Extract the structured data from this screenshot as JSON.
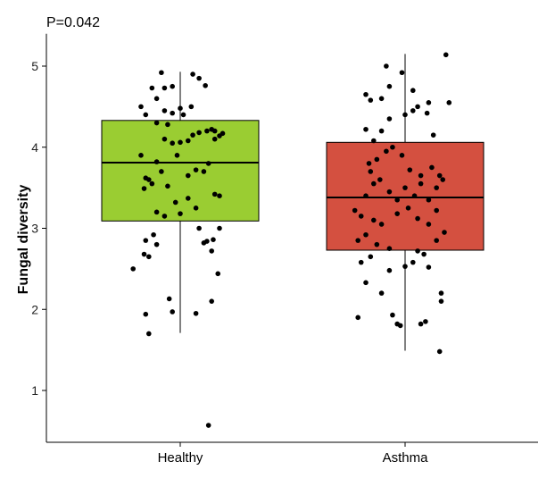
{
  "chart_data": {
    "type": "box",
    "annotation": "P=0.042",
    "xlabel": "",
    "ylabel": "Fungal diversity",
    "categories": [
      "Healthy",
      "Asthma"
    ],
    "yticks": [
      1,
      2,
      3,
      4,
      5
    ],
    "ylim": [
      0.4,
      5.4
    ],
    "grid": false,
    "legend": "none",
    "colors": {
      "Healthy": "#9acd32",
      "Asthma": "#d45040"
    },
    "boxes": [
      {
        "category": "Healthy",
        "q1": 3.09,
        "median": 3.81,
        "q3": 4.33,
        "whisker_low": 1.71,
        "whisker_high": 4.93
      },
      {
        "category": "Asthma",
        "q1": 2.73,
        "median": 3.38,
        "q3": 4.06,
        "whisker_low": 1.49,
        "whisker_high": 5.15
      }
    ],
    "points": {
      "Healthy": [
        {
          "x": -0.3,
          "y": 2.5
        },
        {
          "x": -0.23,
          "y": 2.68
        },
        {
          "x": -0.2,
          "y": 2.65
        },
        {
          "x": -0.15,
          "y": 2.8
        },
        {
          "x": -0.17,
          "y": 2.92
        },
        {
          "x": -0.22,
          "y": 2.85
        },
        {
          "x": -0.05,
          "y": 1.97
        },
        {
          "x": 0.1,
          "y": 1.95
        },
        {
          "x": -0.2,
          "y": 1.7
        },
        {
          "x": -0.07,
          "y": 2.13
        },
        {
          "x": -0.22,
          "y": 1.94
        },
        {
          "x": 0.2,
          "y": 2.1
        },
        {
          "x": 0.24,
          "y": 2.44
        },
        {
          "x": 0.2,
          "y": 2.72
        },
        {
          "x": 0.21,
          "y": 2.86
        },
        {
          "x": 0.15,
          "y": 2.82
        },
        {
          "x": 0.25,
          "y": 3.0
        },
        {
          "x": 0.12,
          "y": 3.0
        },
        {
          "x": 0.17,
          "y": 2.84
        },
        {
          "x": 0.18,
          "y": 0.57
        },
        {
          "x": -0.23,
          "y": 3.49
        },
        {
          "x": -0.18,
          "y": 3.55
        },
        {
          "x": -0.15,
          "y": 3.2
        },
        {
          "x": -0.1,
          "y": 3.15
        },
        {
          "x": -0.03,
          "y": 3.32
        },
        {
          "x": 0.0,
          "y": 3.18
        },
        {
          "x": 0.05,
          "y": 3.37
        },
        {
          "x": 0.1,
          "y": 3.25
        },
        {
          "x": 0.22,
          "y": 3.42
        },
        {
          "x": 0.25,
          "y": 3.4
        },
        {
          "x": -0.2,
          "y": 3.6
        },
        {
          "x": -0.08,
          "y": 3.52
        },
        {
          "x": 0.05,
          "y": 3.65
        },
        {
          "x": 0.1,
          "y": 3.72
        },
        {
          "x": -0.15,
          "y": 3.82
        },
        {
          "x": -0.12,
          "y": 3.7
        },
        {
          "x": -0.22,
          "y": 3.62
        },
        {
          "x": 0.15,
          "y": 3.7
        },
        {
          "x": 0.18,
          "y": 3.8
        },
        {
          "x": -0.25,
          "y": 3.9
        },
        {
          "x": -0.1,
          "y": 4.1
        },
        {
          "x": -0.05,
          "y": 4.05
        },
        {
          "x": 0.0,
          "y": 4.06
        },
        {
          "x": 0.05,
          "y": 4.08
        },
        {
          "x": 0.08,
          "y": 4.15
        },
        {
          "x": 0.12,
          "y": 4.18
        },
        {
          "x": 0.17,
          "y": 4.2
        },
        {
          "x": 0.2,
          "y": 4.22
        },
        {
          "x": 0.22,
          "y": 4.1
        },
        {
          "x": 0.25,
          "y": 4.14
        },
        {
          "x": 0.27,
          "y": 4.17
        },
        {
          "x": -0.15,
          "y": 4.3
        },
        {
          "x": -0.08,
          "y": 4.28
        },
        {
          "x": -0.22,
          "y": 4.4
        },
        {
          "x": -0.1,
          "y": 4.45
        },
        {
          "x": 0.0,
          "y": 4.48
        },
        {
          "x": 0.07,
          "y": 4.5
        },
        {
          "x": -0.05,
          "y": 4.42
        },
        {
          "x": -0.15,
          "y": 4.6
        },
        {
          "x": -0.18,
          "y": 4.73
        },
        {
          "x": -0.1,
          "y": 4.73
        },
        {
          "x": -0.05,
          "y": 4.75
        },
        {
          "x": 0.08,
          "y": 4.9
        },
        {
          "x": 0.12,
          "y": 4.85
        },
        {
          "x": 0.16,
          "y": 4.76
        },
        {
          "x": -0.12,
          "y": 4.92
        },
        {
          "x": -0.25,
          "y": 4.5
        },
        {
          "x": 0.02,
          "y": 4.4
        },
        {
          "x": 0.22,
          "y": 4.2
        },
        {
          "x": -0.02,
          "y": 3.9
        }
      ],
      "Asthma": [
        {
          "x": -0.3,
          "y": 1.9
        },
        {
          "x": -0.05,
          "y": 1.82
        },
        {
          "x": -0.03,
          "y": 1.8
        },
        {
          "x": 0.1,
          "y": 1.82
        },
        {
          "x": 0.13,
          "y": 1.85
        },
        {
          "x": 0.22,
          "y": 1.48
        },
        {
          "x": -0.08,
          "y": 1.93
        },
        {
          "x": -0.15,
          "y": 2.2
        },
        {
          "x": -0.25,
          "y": 2.33
        },
        {
          "x": 0.23,
          "y": 2.1
        },
        {
          "x": 0.23,
          "y": 2.2
        },
        {
          "x": -0.1,
          "y": 2.48
        },
        {
          "x": 0.0,
          "y": 2.53
        },
        {
          "x": 0.15,
          "y": 2.52
        },
        {
          "x": 0.05,
          "y": 2.58
        },
        {
          "x": -0.28,
          "y": 2.58
        },
        {
          "x": -0.22,
          "y": 2.65
        },
        {
          "x": -0.3,
          "y": 2.85
        },
        {
          "x": -0.25,
          "y": 2.92
        },
        {
          "x": -0.18,
          "y": 2.8
        },
        {
          "x": -0.1,
          "y": 2.75
        },
        {
          "x": 0.08,
          "y": 2.72
        },
        {
          "x": 0.12,
          "y": 2.68
        },
        {
          "x": 0.2,
          "y": 2.85
        },
        {
          "x": 0.25,
          "y": 2.95
        },
        {
          "x": -0.32,
          "y": 3.22
        },
        {
          "x": -0.28,
          "y": 3.15
        },
        {
          "x": -0.2,
          "y": 3.1
        },
        {
          "x": -0.15,
          "y": 3.05
        },
        {
          "x": -0.05,
          "y": 3.18
        },
        {
          "x": 0.02,
          "y": 3.25
        },
        {
          "x": 0.08,
          "y": 3.12
        },
        {
          "x": 0.15,
          "y": 3.05
        },
        {
          "x": 0.2,
          "y": 3.22
        },
        {
          "x": -0.25,
          "y": 3.4
        },
        {
          "x": -0.2,
          "y": 3.55
        },
        {
          "x": -0.22,
          "y": 3.7
        },
        {
          "x": -0.16,
          "y": 3.6
        },
        {
          "x": -0.1,
          "y": 3.45
        },
        {
          "x": -0.05,
          "y": 3.35
        },
        {
          "x": 0.0,
          "y": 3.5
        },
        {
          "x": 0.06,
          "y": 3.4
        },
        {
          "x": 0.1,
          "y": 3.55
        },
        {
          "x": 0.15,
          "y": 3.35
        },
        {
          "x": 0.2,
          "y": 3.5
        },
        {
          "x": 0.24,
          "y": 3.6
        },
        {
          "x": -0.23,
          "y": 3.8
        },
        {
          "x": -0.18,
          "y": 3.85
        },
        {
          "x": -0.12,
          "y": 3.95
        },
        {
          "x": -0.08,
          "y": 4.0
        },
        {
          "x": -0.02,
          "y": 3.9
        },
        {
          "x": 0.03,
          "y": 3.72
        },
        {
          "x": 0.1,
          "y": 3.65
        },
        {
          "x": 0.17,
          "y": 3.75
        },
        {
          "x": 0.22,
          "y": 3.65
        },
        {
          "x": -0.2,
          "y": 4.08
        },
        {
          "x": -0.15,
          "y": 4.2
        },
        {
          "x": -0.25,
          "y": 4.22
        },
        {
          "x": 0.18,
          "y": 4.15
        },
        {
          "x": -0.1,
          "y": 4.35
        },
        {
          "x": 0.0,
          "y": 4.4
        },
        {
          "x": 0.05,
          "y": 4.45
        },
        {
          "x": 0.08,
          "y": 4.5
        },
        {
          "x": 0.14,
          "y": 4.42
        },
        {
          "x": -0.22,
          "y": 4.58
        },
        {
          "x": -0.25,
          "y": 4.65
        },
        {
          "x": -0.15,
          "y": 4.6
        },
        {
          "x": -0.1,
          "y": 4.75
        },
        {
          "x": 0.05,
          "y": 4.7
        },
        {
          "x": 0.15,
          "y": 4.55
        },
        {
          "x": 0.28,
          "y": 4.55
        },
        {
          "x": -0.12,
          "y": 5.0
        },
        {
          "x": -0.02,
          "y": 4.92
        },
        {
          "x": 0.26,
          "y": 5.14
        }
      ]
    }
  }
}
